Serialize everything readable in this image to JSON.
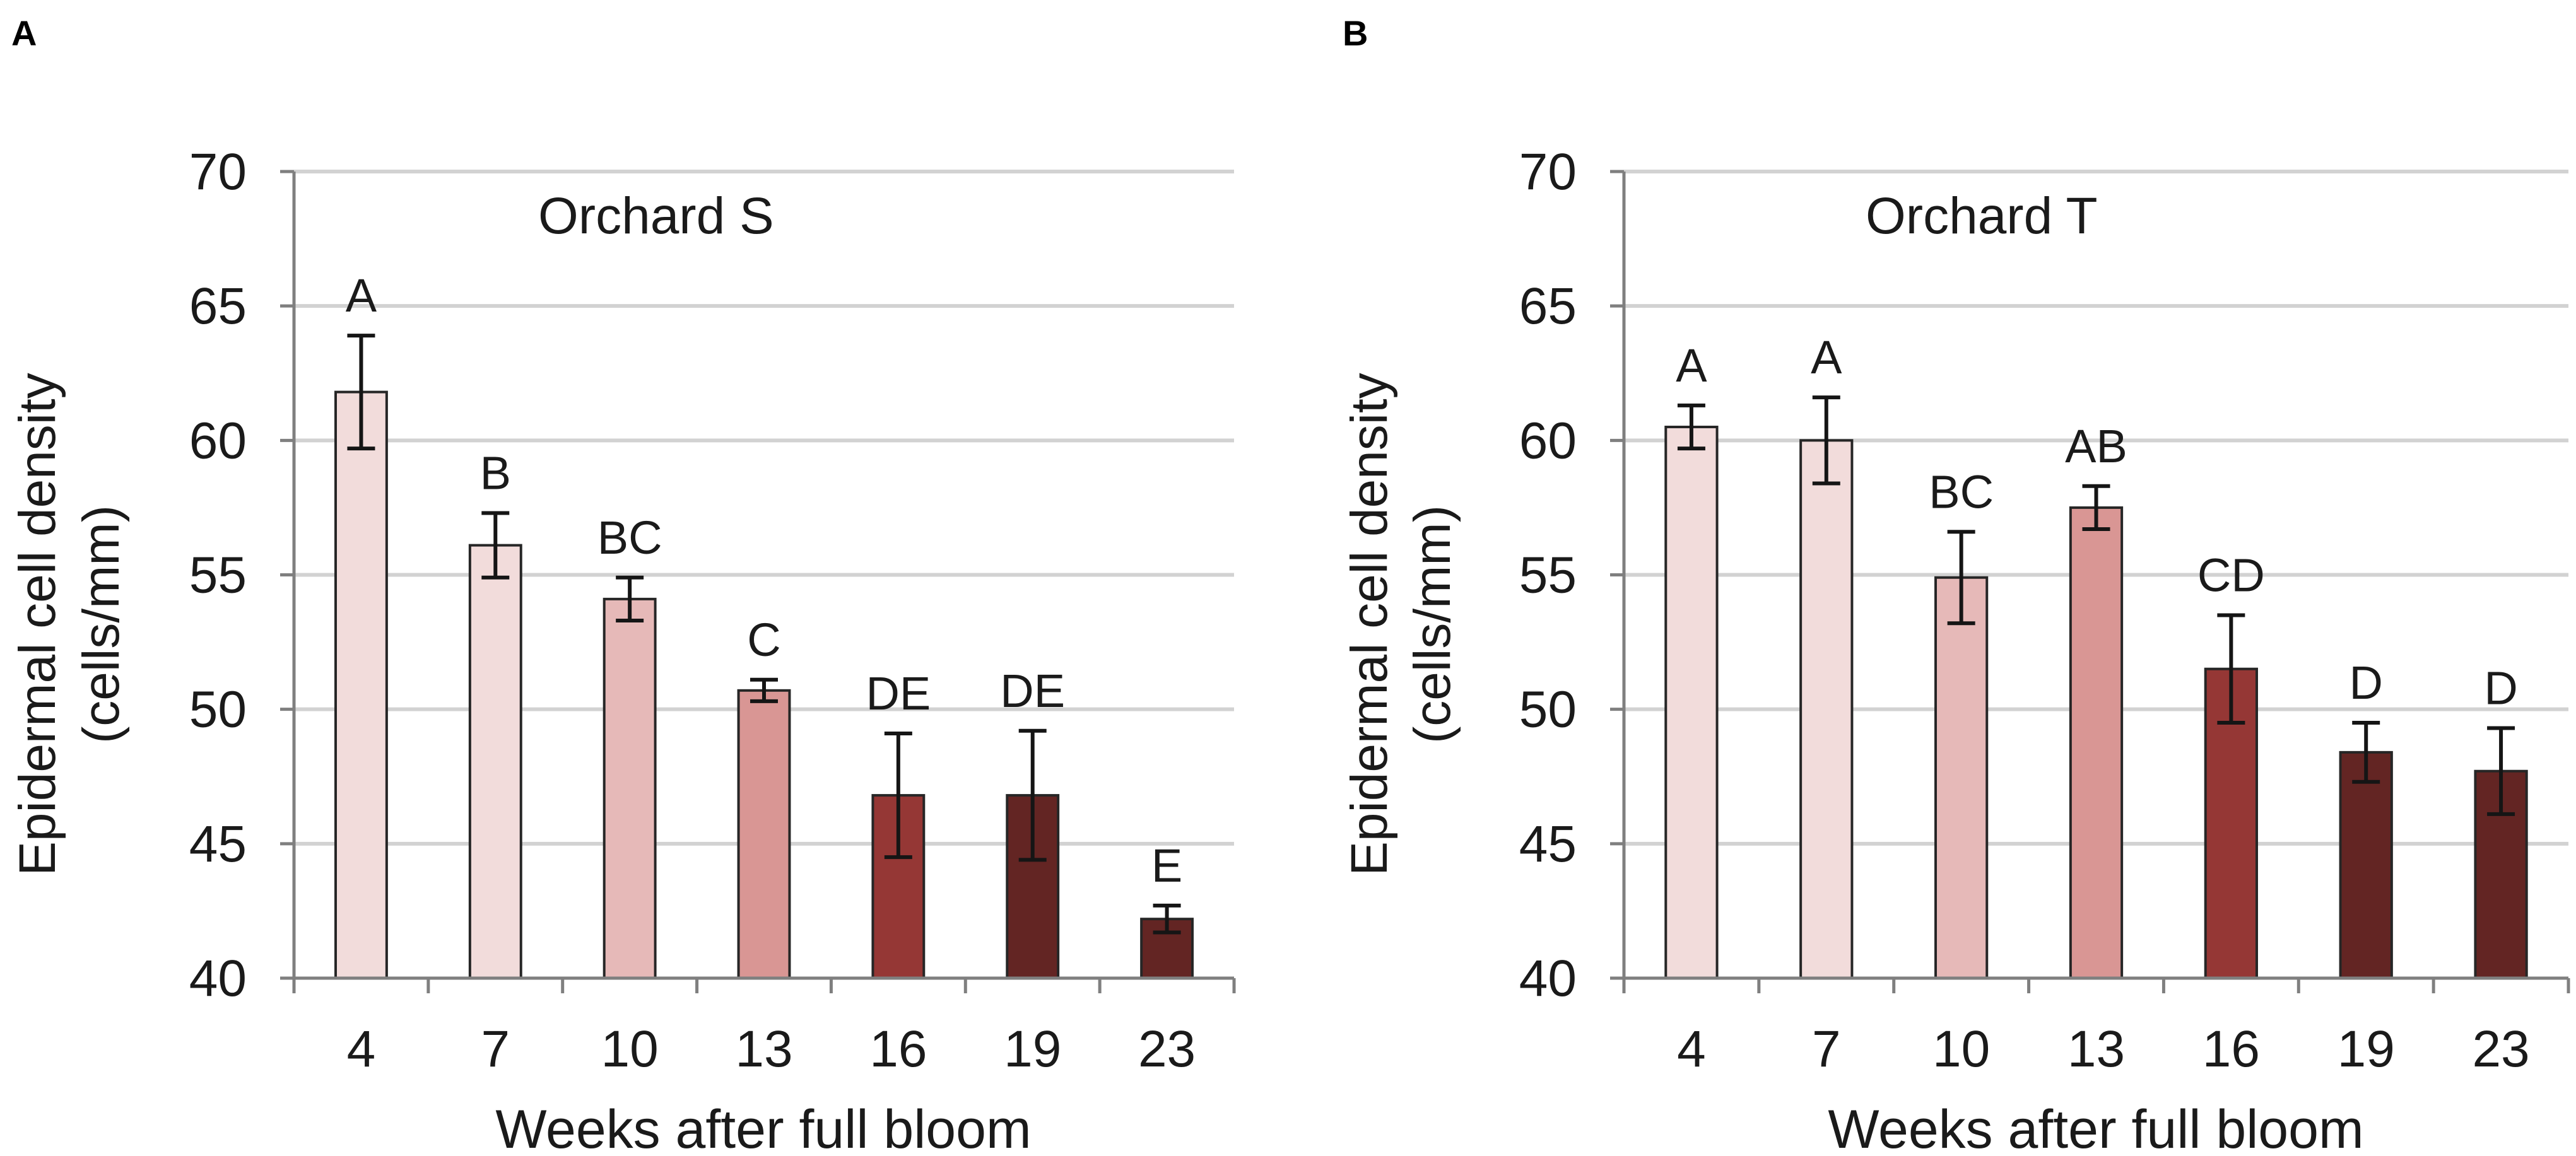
{
  "chart_data": [
    {
      "panel": "A",
      "type": "bar",
      "title": "Orchard S",
      "xlabel": "Weeks after full bloom",
      "ylabel": [
        "Epidermal cell density",
        "(cells/mm)"
      ],
      "ylim": [
        40,
        70
      ],
      "yticks": [
        40,
        45,
        50,
        55,
        60,
        65,
        70
      ],
      "grid": true,
      "categories": [
        "4",
        "7",
        "10",
        "13",
        "16",
        "19",
        "23"
      ],
      "values": [
        61.8,
        56.1,
        54.1,
        50.7,
        46.8,
        46.8,
        42.2
      ],
      "errors": [
        2.1,
        1.2,
        0.8,
        0.4,
        2.3,
        2.4,
        0.5
      ],
      "letters": [
        "A",
        "B",
        "BC",
        "C",
        "DE",
        "DE",
        "E"
      ],
      "colors": [
        "#f2dcdb",
        "#f2dcdb",
        "#e6b9b8",
        "#d99694",
        "#953735",
        "#632523",
        "#632523"
      ]
    },
    {
      "panel": "B",
      "type": "bar",
      "title": "Orchard T",
      "xlabel": "Weeks after full bloom",
      "ylabel": [
        "Epidermal cell density",
        "(cells/mm)"
      ],
      "ylim": [
        40,
        70
      ],
      "yticks": [
        40,
        45,
        50,
        55,
        60,
        65,
        70
      ],
      "grid": true,
      "categories": [
        "4",
        "7",
        "10",
        "13",
        "16",
        "19",
        "23"
      ],
      "values": [
        60.5,
        60.0,
        54.9,
        57.5,
        51.5,
        48.4,
        47.7
      ],
      "errors": [
        0.8,
        1.6,
        1.7,
        0.8,
        2.0,
        1.1,
        1.6
      ],
      "letters": [
        "A",
        "A",
        "BC",
        "AB",
        "CD",
        "D",
        "D"
      ],
      "colors": [
        "#f2dcdb",
        "#f2dcdb",
        "#e6b9b8",
        "#d99694",
        "#953735",
        "#632523",
        "#632523"
      ]
    }
  ]
}
